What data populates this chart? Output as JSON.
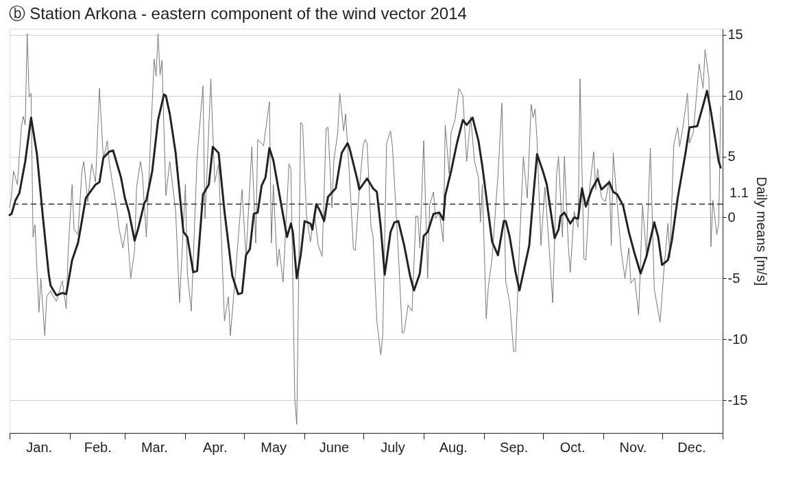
{
  "chart_data": {
    "type": "line",
    "title": "ⓑ Station Arkona - eastern component of the wind vector 2014",
    "ylabel": "Daily means [m/s]",
    "xlim": [
      "2014-01-01",
      "2015-01-01"
    ],
    "ylim": [
      -17.7,
      15.5
    ],
    "yticks": [
      -15,
      -10,
      -5,
      0,
      5,
      10,
      15
    ],
    "xticks": [
      {
        "value": "2014-01-01",
        "label": null
      },
      {
        "value": "2014-01-16",
        "label": "Jan."
      },
      {
        "value": "2014-02-01",
        "label": null
      },
      {
        "value": "2014-02-15",
        "label": "Feb."
      },
      {
        "value": "2014-03-01",
        "label": null
      },
      {
        "value": "2014-03-16",
        "label": "Mar."
      },
      {
        "value": "2014-04-01",
        "label": null
      },
      {
        "value": "2014-04-16",
        "label": "Apr."
      },
      {
        "value": "2014-05-01",
        "label": null
      },
      {
        "value": "2014-05-16",
        "label": "May"
      },
      {
        "value": "2014-06-01",
        "label": null
      },
      {
        "value": "2014-06-16",
        "label": "June"
      },
      {
        "value": "2014-07-01",
        "label": null
      },
      {
        "value": "2014-07-16",
        "label": "July"
      },
      {
        "value": "2014-08-01",
        "label": null
      },
      {
        "value": "2014-08-16",
        "label": "Aug."
      },
      {
        "value": "2014-09-01",
        "label": null
      },
      {
        "value": "2014-09-16",
        "label": "Sep."
      },
      {
        "value": "2014-10-01",
        "label": null
      },
      {
        "value": "2014-10-16",
        "label": "Oct."
      },
      {
        "value": "2014-11-01",
        "label": null
      },
      {
        "value": "2014-11-16",
        "label": "Nov."
      },
      {
        "value": "2014-12-01",
        "label": null
      },
      {
        "value": "2014-12-16",
        "label": "Dec."
      },
      {
        "value": "2015-01-01",
        "label": null
      }
    ],
    "grid": "y",
    "legend": false,
    "line_style": "solid",
    "marker": "none",
    "ref_lines": [
      {
        "axis": "y",
        "value": 1.1,
        "label": "1.1",
        "line_style": "dashed",
        "color": "#333333"
      }
    ],
    "series": [
      {
        "color": "#777777",
        "x": [
          "2014-01-01",
          "2014-01-02",
          "2014-01-03",
          "2014-01-05",
          "2014-01-07",
          "2014-01-08",
          "2014-01-09",
          "2014-01-10",
          "2014-01-11",
          "2014-01-12",
          "2014-01-13",
          "2014-01-14",
          "2014-01-16",
          "2014-01-17",
          "2014-01-19",
          "2014-01-20",
          "2014-01-22",
          "2014-01-23",
          "2014-01-25",
          "2014-01-28",
          "2014-01-30",
          "2014-01-31",
          "2014-02-02",
          "2014-02-03",
          "2014-02-05",
          "2014-02-07",
          "2014-02-08",
          "2014-02-10",
          "2014-02-12",
          "2014-02-14",
          "2014-02-16",
          "2014-02-18",
          "2014-02-20",
          "2014-02-21",
          "2014-02-25",
          "2014-02-26",
          "2014-02-28",
          "2014-03-02",
          "2014-03-04",
          "2014-03-06",
          "2014-03-07",
          "2014-03-09",
          "2014-03-10",
          "2014-03-12",
          "2014-03-16",
          "2014-03-17",
          "2014-03-18",
          "2014-03-19",
          "2014-03-20",
          "2014-03-22",
          "2014-03-24",
          "2014-03-27",
          "2014-03-29",
          "2014-04-01",
          "2014-04-02",
          "2014-04-04",
          "2014-04-07",
          "2014-04-10",
          "2014-04-11",
          "2014-04-12",
          "2014-04-14",
          "2014-04-16",
          "2014-04-18",
          "2014-04-21",
          "2014-04-23",
          "2014-04-24",
          "2014-04-26",
          "2014-04-30",
          "2014-05-02",
          "2014-05-05",
          "2014-05-07",
          "2014-05-08",
          "2014-05-11",
          "2014-05-14",
          "2014-05-15",
          "2014-05-16",
          "2014-05-18",
          "2014-05-19",
          "2014-05-21",
          "2014-05-24",
          "2014-05-25",
          "2014-05-27",
          "2014-05-28",
          "2014-05-30",
          "2014-05-31",
          "2014-06-02",
          "2014-06-04",
          "2014-06-06",
          "2014-06-08",
          "2014-06-10",
          "2014-06-12",
          "2014-06-13",
          "2014-06-15",
          "2014-06-16",
          "2014-06-18",
          "2014-06-19",
          "2014-06-21",
          "2014-06-22",
          "2014-06-24",
          "2014-06-26",
          "2014-06-27",
          "2014-06-29",
          "2014-07-01",
          "2014-07-02",
          "2014-07-03",
          "2014-07-05",
          "2014-07-06",
          "2014-07-08",
          "2014-07-10",
          "2014-07-11",
          "2014-07-13",
          "2014-07-15",
          "2014-07-16",
          "2014-07-19",
          "2014-07-21",
          "2014-07-22",
          "2014-07-24",
          "2014-07-26",
          "2014-07-28",
          "2014-07-29",
          "2014-07-30",
          "2014-08-01",
          "2014-08-03",
          "2014-08-04",
          "2014-08-06",
          "2014-08-07",
          "2014-08-09",
          "2014-08-11",
          "2014-08-12",
          "2014-08-14",
          "2014-08-15",
          "2014-08-17",
          "2014-08-19",
          "2014-08-21",
          "2014-08-23",
          "2014-08-25",
          "2014-08-27",
          "2014-08-29",
          "2014-08-30",
          "2014-08-31",
          "2014-09-02",
          "2014-09-03",
          "2014-09-05",
          "2014-09-08",
          "2014-09-10",
          "2014-09-12",
          "2014-09-14",
          "2014-09-16",
          "2014-09-17",
          "2014-09-19",
          "2014-09-21",
          "2014-09-23",
          "2014-09-25",
          "2014-09-26",
          "2014-09-27",
          "2014-09-28",
          "2014-09-30",
          "2014-10-02",
          "2014-10-04",
          "2014-10-06",
          "2014-10-08",
          "2014-10-09",
          "2014-10-11",
          "2014-10-12",
          "2014-10-14",
          "2014-10-15",
          "2014-10-17",
          "2014-10-19",
          "2014-10-20",
          "2014-10-22",
          "2014-10-23",
          "2014-10-25",
          "2014-10-27",
          "2014-10-28",
          "2014-10-29",
          "2014-10-31",
          "2014-11-02",
          "2014-11-04",
          "2014-11-05",
          "2014-11-06",
          "2014-11-08",
          "2014-11-10",
          "2014-11-12",
          "2014-11-14",
          "2014-11-15",
          "2014-11-17",
          "2014-11-19",
          "2014-11-21",
          "2014-11-23",
          "2014-11-25",
          "2014-11-27",
          "2014-11-30",
          "2014-12-02",
          "2014-12-04",
          "2014-12-05",
          "2014-12-07",
          "2014-12-09",
          "2014-12-10",
          "2014-12-12",
          "2014-12-14",
          "2014-12-15",
          "2014-12-17",
          "2014-12-20",
          "2014-12-22",
          "2014-12-23",
          "2014-12-25",
          "2014-12-26",
          "2014-12-27",
          "2014-12-29",
          "2014-12-30",
          "2014-12-31"
        ],
        "values": [
          0.8,
          1.8,
          3.8,
          2.7,
          7.4,
          8.3,
          7.6,
          15.1,
          9.9,
          10.2,
          -1.6,
          -0.6,
          -7.8,
          -5.0,
          -9.7,
          -6.5,
          -6.0,
          -6.4,
          -6.9,
          -5.2,
          -7.5,
          -2.7,
          2.7,
          -1.0,
          -1.4,
          3.8,
          4.6,
          1.3,
          4.4,
          2.9,
          10.6,
          4.8,
          6.3,
          4.5,
          0.5,
          -0.9,
          -2.5,
          -0.5,
          -5.0,
          -2.7,
          2.5,
          4.6,
          3.5,
          -1.6,
          13.0,
          11.6,
          15.1,
          11.7,
          12.9,
          1.8,
          4.6,
          0.5,
          -7.0,
          2.7,
          -4.6,
          -7.7,
          5.0,
          10.8,
          -0.1,
          3.5,
          11.4,
          2.9,
          4.4,
          -8.5,
          -6.5,
          -9.7,
          -5.9,
          2.3,
          -3.3,
          5.8,
          -2.1,
          6.4,
          5.9,
          9.5,
          -2.1,
          2.7,
          -4.0,
          -2.6,
          -5.3,
          4.4,
          4.0,
          -14.9,
          -17.0,
          7.8,
          7.6,
          0.1,
          -2.0,
          0.5,
          -2.3,
          -3.2,
          7.3,
          7.4,
          0.8,
          4.7,
          7.0,
          10.2,
          7.1,
          8.5,
          3.3,
          -2.6,
          -2.7,
          2.3,
          5.9,
          6.4,
          6.1,
          -0.8,
          -1.5,
          -8.5,
          -11.3,
          -9.7,
          6.1,
          7.1,
          5.8,
          -2.9,
          -9.5,
          -9.4,
          -7.2,
          -7.7,
          0.1,
          0.1,
          -2.5,
          6.3,
          -5.0,
          1.0,
          2.1,
          -0.1,
          0.4,
          -2.0,
          7.6,
          3.6,
          7.0,
          8.0,
          10.6,
          10.0,
          4.6,
          8.3,
          4.6,
          3.3,
          -0.4,
          2.7,
          -8.3,
          -5.8,
          -3.3,
          3.5,
          9.4,
          -5.3,
          -7.0,
          -11.0,
          -11.0,
          -2.3,
          5.0,
          1.6,
          9.3,
          8.2,
          8.9,
          6.3,
          -2.3,
          2.5,
          -2.0,
          -7.0,
          3.5,
          5.0,
          -1.6,
          5.0,
          -2.3,
          -4.5,
          0.5,
          -0.8,
          11.4,
          -3.4,
          -3.5,
          2.5,
          5.4,
          2.3,
          4.0,
          1.6,
          1.3,
          3.1,
          -2.3,
          5.3,
          1.2,
          -2.7,
          -5.0,
          -2.5,
          -5.4,
          -5.0,
          -8.0,
          1.0,
          -3.1,
          5.7,
          -5.9,
          -8.6,
          -4.2,
          -0.5,
          -3.3,
          6.0,
          7.4,
          5.8,
          7.8,
          10.2,
          6.1,
          7.0,
          12.6,
          10.6,
          13.8,
          11.4,
          -2.4,
          1.4,
          -1.4,
          -0.5,
          9.1
        ]
      },
      {
        "color": "#222222",
        "x": [
          "2014-01-01",
          "2014-01-02",
          "2014-01-04",
          "2014-01-06",
          "2014-01-09",
          "2014-01-12",
          "2014-01-15",
          "2014-01-18",
          "2014-01-21",
          "2014-01-22",
          "2014-01-25",
          "2014-01-28",
          "2014-01-30",
          "2014-02-02",
          "2014-02-05",
          "2014-02-07",
          "2014-02-09",
          "2014-02-14",
          "2014-02-16",
          "2014-02-18",
          "2014-02-21",
          "2014-02-23",
          "2014-02-27",
          "2014-03-01",
          "2014-03-03",
          "2014-03-06",
          "2014-03-08",
          "2014-03-11",
          "2014-03-12",
          "2014-03-15",
          "2014-03-18",
          "2014-03-21",
          "2014-03-22",
          "2014-03-24",
          "2014-03-27",
          "2014-03-31",
          "2014-04-02",
          "2014-04-05",
          "2014-04-07",
          "2014-04-10",
          "2014-04-13",
          "2014-04-15",
          "2014-04-18",
          "2014-04-21",
          "2014-04-25",
          "2014-04-28",
          "2014-04-30",
          "2014-05-02",
          "2014-05-04",
          "2014-05-06",
          "2014-05-08",
          "2014-05-10",
          "2014-05-12",
          "2014-05-14",
          "2014-05-16",
          "2014-05-19",
          "2014-05-23",
          "2014-05-25",
          "2014-05-26",
          "2014-05-28",
          "2014-05-30",
          "2014-06-01",
          "2014-06-04",
          "2014-06-05",
          "2014-06-07",
          "2014-06-09",
          "2014-06-11",
          "2014-06-13",
          "2014-06-17",
          "2014-06-20",
          "2014-06-23",
          "2014-06-24",
          "2014-06-28",
          "2014-06-29",
          "2014-07-03",
          "2014-07-06",
          "2014-07-08",
          "2014-07-10",
          "2014-07-12",
          "2014-07-15",
          "2014-07-17",
          "2014-07-19",
          "2014-07-22",
          "2014-07-25",
          "2014-07-27",
          "2014-07-30",
          "2014-08-01",
          "2014-08-03",
          "2014-08-06",
          "2014-08-09",
          "2014-08-11",
          "2014-08-12",
          "2014-08-15",
          "2014-08-18",
          "2014-08-21",
          "2014-08-23",
          "2014-08-26",
          "2014-08-29",
          "2014-08-31",
          "2014-09-05",
          "2014-09-08",
          "2014-09-11",
          "2014-09-12",
          "2014-09-14",
          "2014-09-17",
          "2014-09-19",
          "2014-09-24",
          "2014-09-26",
          "2014-09-28",
          "2014-10-01",
          "2014-10-03",
          "2014-10-07",
          "2014-10-09",
          "2014-10-10",
          "2014-10-12",
          "2014-10-15",
          "2014-10-17",
          "2014-10-19",
          "2014-10-21",
          "2014-10-23",
          "2014-10-26",
          "2014-10-29",
          "2014-10-31",
          "2014-11-04",
          "2014-11-06",
          "2014-11-08",
          "2014-11-11",
          "2014-11-14",
          "2014-11-17",
          "2014-11-20",
          "2014-11-23",
          "2014-11-27",
          "2014-11-29",
          "2014-12-01",
          "2014-12-04",
          "2014-12-06",
          "2014-12-09",
          "2014-12-13",
          "2014-12-15",
          "2014-12-19",
          "2014-12-22",
          "2014-12-24",
          "2014-12-26",
          "2014-12-30",
          "2014-12-31"
        ],
        "values": [
          0.2,
          0.3,
          1.4,
          2.0,
          4.6,
          8.2,
          5.2,
          0.1,
          -4.6,
          -5.6,
          -6.4,
          -6.2,
          -6.3,
          -3.5,
          -2.1,
          -0.3,
          1.6,
          2.7,
          2.9,
          4.9,
          5.4,
          5.5,
          3.3,
          1.6,
          0.5,
          -1.9,
          -0.8,
          1.2,
          1.4,
          3.8,
          8.0,
          10.1,
          10.0,
          8.5,
          5.3,
          -1.2,
          -1.6,
          -4.5,
          -4.4,
          1.9,
          2.7,
          5.8,
          5.3,
          0.5,
          -4.8,
          -6.3,
          -6.2,
          -3.1,
          -2.6,
          0.3,
          0.4,
          2.6,
          3.3,
          5.7,
          4.7,
          2.0,
          -1.6,
          -0.5,
          -1.2,
          -5.0,
          -3.1,
          -0.3,
          -0.5,
          -1.0,
          1.1,
          0.5,
          -0.3,
          1.7,
          2.4,
          5.3,
          6.1,
          5.7,
          3.1,
          2.3,
          3.2,
          2.4,
          2.1,
          -0.8,
          -4.7,
          -1.2,
          -0.4,
          -0.3,
          -2.3,
          -4.8,
          -6.0,
          -4.6,
          -1.5,
          -1.2,
          0.3,
          0.4,
          -0.2,
          1.8,
          3.8,
          6.1,
          8.0,
          7.6,
          8.2,
          6.3,
          4.2,
          -2.0,
          -3.1,
          -0.3,
          -0.3,
          -1.6,
          -4.5,
          -6.0,
          -2.3,
          1.6,
          5.2,
          3.8,
          2.7,
          -1.7,
          -1.0,
          0.1,
          0.4,
          -0.5,
          0.0,
          -0.1,
          2.4,
          0.9,
          2.3,
          3.2,
          2.3,
          2.9,
          2.1,
          1.9,
          1.0,
          -1.2,
          -3.0,
          -4.6,
          -3.2,
          -0.4,
          -1.6,
          -3.9,
          -3.5,
          -1.9,
          1.6,
          5.3,
          7.4,
          7.5,
          9.2,
          10.4,
          8.7,
          4.6,
          4.1
        ]
      }
    ]
  }
}
